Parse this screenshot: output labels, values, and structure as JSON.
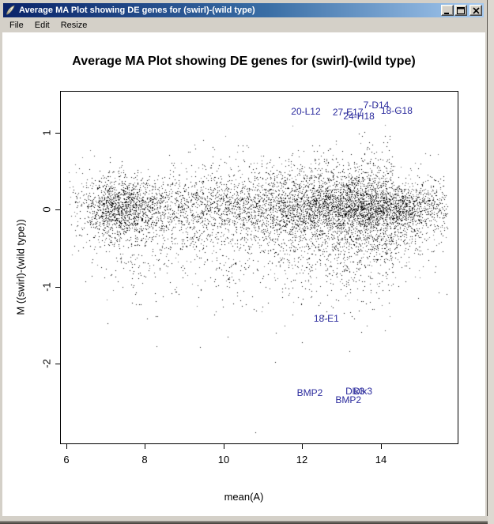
{
  "window": {
    "title": "Average MA Plot showing DE genes for (swirl)-(wild type)",
    "icon": "feather-graphics-device-icon",
    "controls": {
      "minimize": "minimize",
      "maximize": "maximize",
      "close": "close"
    }
  },
  "menu": {
    "items": [
      "File",
      "Edit",
      "Resize"
    ]
  },
  "colors": {
    "titlebar_gradient_start": "#0A246A",
    "titlebar_gradient_end": "#A6CAF0",
    "window_chrome": "#D4D0C8",
    "plot_background": "#FFFFFF",
    "point_color": "#000000",
    "gene_label": "#2B2B9E"
  },
  "chart_data": {
    "type": "scatter",
    "title": "Average MA Plot showing DE genes for (swirl)-(wild type)",
    "xlabel": "mean(A)",
    "ylabel": "M ((swirl)-(wild type))",
    "xlim": [
      5.84,
      15.97
    ],
    "ylim": [
      -3.04,
      1.54
    ],
    "x_ticks": [
      6,
      8,
      10,
      12,
      14
    ],
    "y_ticks": [
      1,
      0,
      -1,
      -2
    ],
    "grid": false,
    "legend": null,
    "n_points": 8448,
    "point_marker": "1px-pixel-dot",
    "labeled_genes": [
      {
        "label": "20-L12",
        "A": 12.09,
        "M": 1.27
      },
      {
        "label": "27-E17",
        "A": 13.16,
        "M": 1.26
      },
      {
        "label": "7-D14",
        "A": 13.88,
        "M": 1.36
      },
      {
        "label": "24-H18",
        "A": 13.44,
        "M": 1.21
      },
      {
        "label": "18-G18",
        "A": 14.4,
        "M": 1.28
      },
      {
        "label": "18-E1",
        "A": 12.61,
        "M": -1.41
      },
      {
        "label": "BMP2",
        "A": 12.19,
        "M": -2.37
      },
      {
        "label": "Dlx3",
        "A": 13.34,
        "M": -2.35
      },
      {
        "label": "Dlx3",
        "A": 13.54,
        "M": -2.35
      },
      {
        "label": "BMP2",
        "A": 13.17,
        "M": -2.47
      }
    ],
    "outlier_points": [
      {
        "A": 10.8,
        "M": -2.89
      },
      {
        "A": 11.3,
        "M": -1.97
      },
      {
        "A": 9.4,
        "M": -1.78
      },
      {
        "A": 13.2,
        "M": -1.83
      },
      {
        "A": 12.0,
        "M": -1.72
      },
      {
        "A": 10.1,
        "M": -1.65
      }
    ],
    "cloud_model": {
      "seed": 42,
      "x_mixture": [
        {
          "weight": 0.18,
          "mean": 7.4,
          "sd": 0.55
        },
        {
          "weight": 0.15,
          "mean": 9.3,
          "sd": 1.0
        },
        {
          "weight": 0.4,
          "mean": 12.4,
          "sd": 1.4
        },
        {
          "weight": 0.27,
          "mean": 13.9,
          "sd": 0.95
        }
      ],
      "x_range": [
        6.05,
        15.7
      ],
      "y_components": {
        "core": {
          "weight": 0.8,
          "mean": 0.02,
          "sd": 0.21
        },
        "lower": {
          "weight": 0.14,
          "start": -0.35,
          "sd": 0.38
        },
        "upper": {
          "weight": 0.06,
          "start": 0.32,
          "sd": 0.25
        }
      },
      "sd_shrink_right": {
        "from": 14.3,
        "factor": 0.7
      },
      "y_clip": [
        -2.95,
        1.45
      ]
    }
  }
}
